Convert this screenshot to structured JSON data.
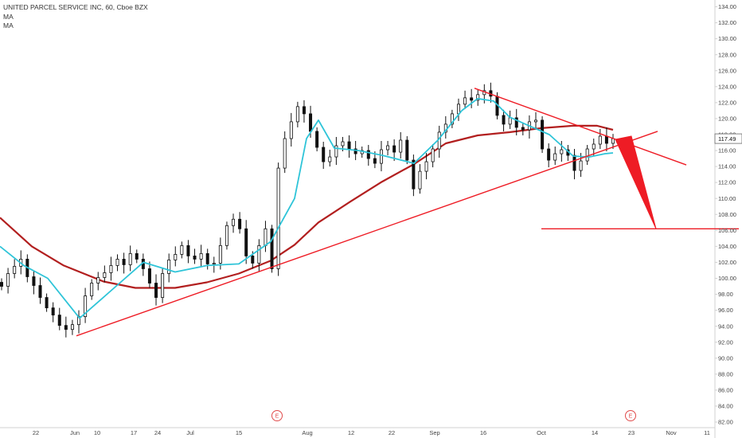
{
  "legend": {
    "title": "UNITED PARCEL SERVICE INC, 60, Cboe BZX",
    "ma1": "MA",
    "ma2": "MA"
  },
  "colors": {
    "background": "#ffffff",
    "candle": "#111111",
    "ma_fast": "#2ec4d8",
    "ma_slow": "#b21f1f",
    "drawing": "#ee1c25",
    "earnings": "#e04a4a",
    "axis_text": "#444444",
    "axis_line": "#d0d0d0"
  },
  "earnings_marker": "E",
  "chart_data": {
    "type": "candlestick",
    "title": "UNITED PARCEL SERVICE INC, 60, Cboe BZX",
    "y_ticks": [
      "82.00",
      "84.00",
      "86.00",
      "88.00",
      "90.00",
      "92.00",
      "94.00",
      "96.00",
      "98.00",
      "100.00",
      "102.00",
      "104.00",
      "106.00",
      "108.00",
      "110.00",
      "112.00",
      "114.00",
      "116.00",
      "118.00",
      "120.00",
      "122.00",
      "124.00",
      "126.00",
      "128.00",
      "130.00",
      "132.00",
      "134.00"
    ],
    "x_ticks": [
      "22",
      "Jun",
      "10",
      "17",
      "24",
      "Jul",
      "15",
      "Aug",
      "12",
      "22",
      "Sep",
      "16",
      "Oct",
      "14",
      "23",
      "Nov",
      "11"
    ],
    "ylim": [
      82,
      134.5
    ],
    "last_price": "117.49",
    "candles_close_approx": [
      99.0,
      100.6,
      101.5,
      102.4,
      100.2,
      99.1,
      97.6,
      96.3,
      95.4,
      94.1,
      93.6,
      94.2,
      95.2,
      97.8,
      99.4,
      100.1,
      100.7,
      101.6,
      102.4,
      101.7,
      103.1,
      102.4,
      101.2,
      99.4,
      97.6,
      100.6,
      102.3,
      103.0,
      104.1,
      102.8,
      102.4,
      103.1,
      101.8,
      101.9,
      104.1,
      106.6,
      107.4,
      106.2,
      102.8,
      101.9,
      104.1,
      106.2,
      101.2,
      113.8,
      117.5,
      119.6,
      121.5,
      120.6,
      118.4,
      116.4,
      114.6,
      115.2,
      116.6,
      117.1,
      116.2,
      115.6,
      116.0,
      115.0,
      114.4,
      116.1,
      116.6,
      115.8,
      117.3,
      114.8,
      111.2,
      113.4,
      114.6,
      116.2,
      118.3,
      119.3,
      120.6,
      121.8,
      122.6,
      122.3,
      123.0,
      123.5,
      122.8,
      120.4,
      119.3,
      120.1,
      118.9,
      118.6,
      119.6,
      119.8,
      116.2,
      114.8,
      115.6,
      116.1,
      115.4,
      113.5,
      114.7,
      116.2,
      116.8,
      117.8,
      116.9,
      117.49
    ],
    "series": [
      {
        "type": "moving_average",
        "color": "#2ec4d8",
        "points": [
          [
            0,
            104.0
          ],
          [
            30,
            101.6
          ],
          [
            60,
            100.0
          ],
          [
            100,
            95.0
          ],
          [
            140,
            98.5
          ],
          [
            180,
            102.0
          ],
          [
            220,
            100.8
          ],
          [
            260,
            101.6
          ],
          [
            300,
            101.8
          ],
          [
            340,
            104.6
          ],
          [
            370,
            110.0
          ],
          [
            385,
            117.5
          ],
          [
            400,
            119.8
          ],
          [
            420,
            116.3
          ],
          [
            450,
            116.0
          ],
          [
            480,
            115.4
          ],
          [
            520,
            114.4
          ],
          [
            550,
            117.3
          ],
          [
            580,
            121.0
          ],
          [
            600,
            122.5
          ],
          [
            620,
            122.2
          ],
          [
            640,
            120.2
          ],
          [
            660,
            119.3
          ],
          [
            690,
            118.0
          ],
          [
            720,
            115.3
          ],
          [
            740,
            115.2
          ],
          [
            760,
            115.6
          ],
          [
            770,
            115.7
          ]
        ]
      },
      {
        "type": "moving_average",
        "color": "#b21f1f",
        "points": [
          [
            0,
            107.6
          ],
          [
            40,
            104.0
          ],
          [
            80,
            101.6
          ],
          [
            130,
            99.6
          ],
          [
            170,
            98.8
          ],
          [
            220,
            98.8
          ],
          [
            260,
            99.5
          ],
          [
            300,
            100.6
          ],
          [
            340,
            102.2
          ],
          [
            370,
            104.2
          ],
          [
            400,
            107.0
          ],
          [
            440,
            109.6
          ],
          [
            480,
            112.1
          ],
          [
            520,
            114.3
          ],
          [
            560,
            116.9
          ],
          [
            600,
            117.9
          ],
          [
            640,
            118.3
          ],
          [
            680,
            118.8
          ],
          [
            720,
            119.1
          ],
          [
            750,
            119.1
          ],
          [
            770,
            118.6
          ]
        ]
      }
    ],
    "annotations": [
      {
        "type": "trendline",
        "from": [
          96,
          92.8
        ],
        "to": [
          826,
          118.4
        ]
      },
      {
        "type": "trendline",
        "from": [
          596,
          123.8
        ],
        "to": [
          862,
          114.2
        ]
      },
      {
        "type": "trendline",
        "from": [
          680,
          106.2
        ],
        "to": [
          928,
          106.2
        ]
      },
      {
        "type": "arrow_target",
        "from": [
          783,
          117.0
        ],
        "to": [
          824,
          106.2
        ]
      }
    ],
    "grid": false,
    "legend_position": "top-left"
  }
}
